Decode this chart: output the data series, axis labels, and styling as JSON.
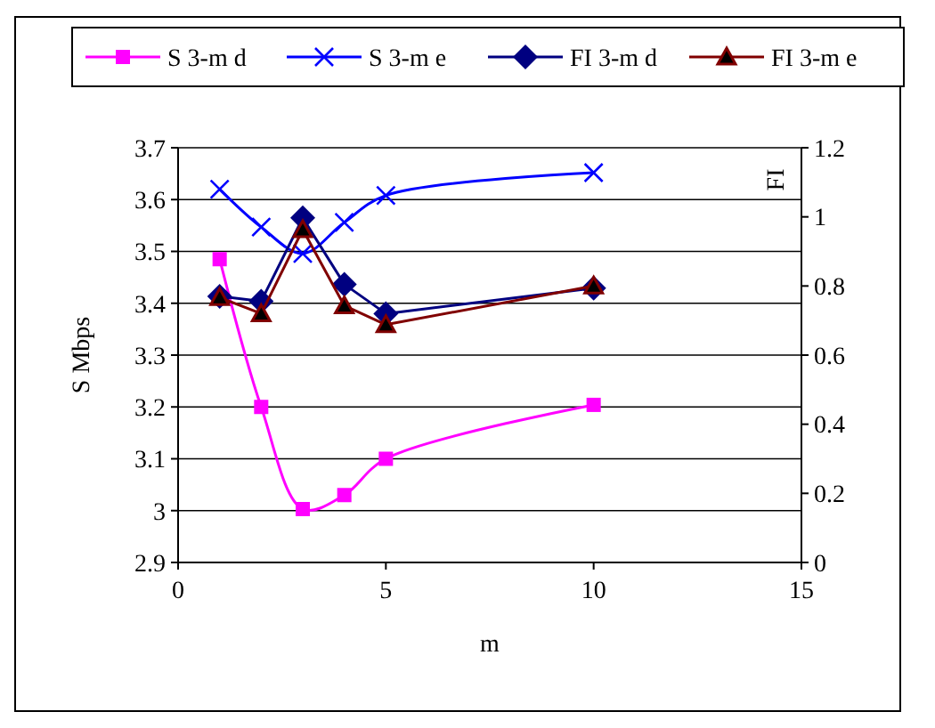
{
  "chart_data": {
    "type": "line",
    "xlabel": "m",
    "ylabel": "S Mbps",
    "y2label": "FI",
    "x": [
      1,
      2,
      3,
      4,
      5,
      10
    ],
    "xlim": [
      0,
      15
    ],
    "xticks": [
      0,
      5,
      10,
      15
    ],
    "ylim": [
      2.9,
      3.7
    ],
    "yticks": [
      2.9,
      3,
      3.1,
      3.2,
      3.3,
      3.4,
      3.5,
      3.6,
      3.7
    ],
    "y2lim": [
      0,
      1.2
    ],
    "y2ticks": [
      0,
      0.2,
      0.4,
      0.6,
      0.8,
      1,
      1.2
    ],
    "grid": "y",
    "legend": "top",
    "series": [
      {
        "name": "S 3-m d",
        "color": "#ff00ff",
        "marker": "square",
        "values": [
          3.485,
          3.2,
          3.003,
          3.03,
          3.1,
          3.204
        ]
      },
      {
        "name": "S 3-m e",
        "color": "#0000ff",
        "marker": "cross",
        "values": [
          3.62,
          3.547,
          3.496,
          3.556,
          3.608,
          3.652
        ]
      },
      {
        "name": "FI 3-m d",
        "color": "#000080",
        "marker": "diamond",
        "axis": "y2",
        "values": [
          0.77,
          0.756,
          0.997,
          0.805,
          0.72,
          0.794
        ]
      },
      {
        "name": "FI 3-m e",
        "color": "#800000",
        "marker": "triangle",
        "axis": "y2",
        "values": [
          0.767,
          0.72,
          0.963,
          0.743,
          0.688,
          0.8
        ]
      }
    ]
  }
}
